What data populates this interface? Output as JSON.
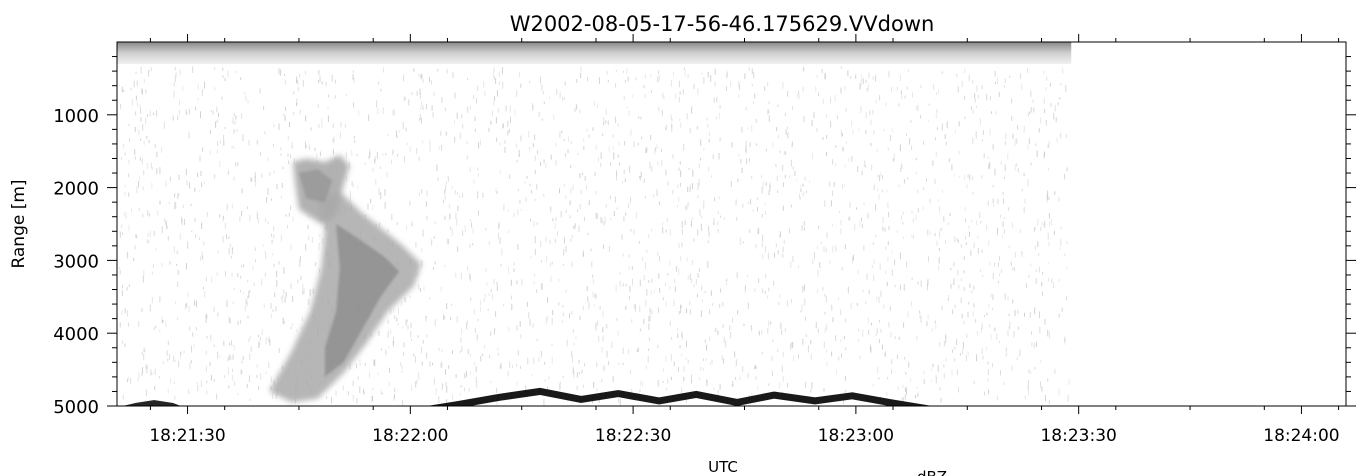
{
  "chart_data": {
    "type": "heatmap",
    "title": "W2002-08-05-17-56-46.175629.VVdown",
    "xlabel": "UTC",
    "ylabel": "Range [m]",
    "footer_label": "dBZ",
    "x_tick_labels": [
      "18:21:30",
      "18:22:00",
      "18:22:30",
      "18:23:00",
      "18:23:30",
      "18:24:00"
    ],
    "x_tick_seconds": [
      90,
      120,
      150,
      180,
      210,
      240
    ],
    "xlim_seconds": [
      80.5,
      246.0
    ],
    "data_end_seconds": 209.0,
    "x_origin_time": "18:20:00",
    "y_tick_labels": [
      "1000",
      "2000",
      "3000",
      "4000",
      "5000"
    ],
    "y_tick_values": [
      1000,
      2000,
      3000,
      4000,
      5000
    ],
    "ylim": [
      5000,
      0
    ],
    "y_inverted": true,
    "colormap": "grayscale",
    "features": [
      {
        "name": "echo plume top",
        "t_start": 104,
        "t_end": 111,
        "range_top": 1600,
        "range_bottom": 2400
      },
      {
        "name": "echo plume main",
        "t_start": 108,
        "t_end": 122,
        "range_top": 2300,
        "range_bottom": 4800
      },
      {
        "name": "surface return",
        "t_start": 80.5,
        "t_end": 191,
        "range": 5000
      }
    ]
  },
  "colors": {
    "background": "#ffffff",
    "axis": "#000000",
    "echo_light": "#a9a9a9",
    "echo_dark": "#8a8a8a",
    "noise": "#c8c8c8",
    "surface": "#000000"
  }
}
